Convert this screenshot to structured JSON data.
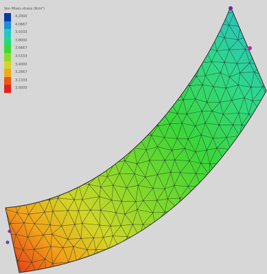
{
  "legend": {
    "title": "Von Mises stress (N/m²)",
    "entries": [
      {
        "value": "4.2000",
        "color": "#0a3aa6"
      },
      {
        "value": "4.0667",
        "color": "#1e8fd6"
      },
      {
        "value": "3.9333",
        "color": "#26c7c0"
      },
      {
        "value": "3.8000",
        "color": "#24d884"
      },
      {
        "value": "3.6667",
        "color": "#3fd63a"
      },
      {
        "value": "3.5333",
        "color": "#8fd92a"
      },
      {
        "value": "3.4000",
        "color": "#d6d22a"
      },
      {
        "value": "3.2667",
        "color": "#f0a81c"
      },
      {
        "value": "3.1333",
        "color": "#ea5a14"
      },
      {
        "value": "3.0000",
        "color": "#e0241a"
      }
    ]
  },
  "mesh": {
    "gradient_stops": [
      {
        "offset": 0.0,
        "color": "#e42a16"
      },
      {
        "offset": 0.14,
        "color": "#f2a21a"
      },
      {
        "offset": 0.26,
        "color": "#d3d628"
      },
      {
        "offset": 0.42,
        "color": "#7fd82c"
      },
      {
        "offset": 0.6,
        "color": "#3bd63a"
      },
      {
        "offset": 0.8,
        "color": "#2fd88a"
      },
      {
        "offset": 1.0,
        "color": "#28b8d8"
      }
    ],
    "edge_color": "#1c3b1a"
  }
}
